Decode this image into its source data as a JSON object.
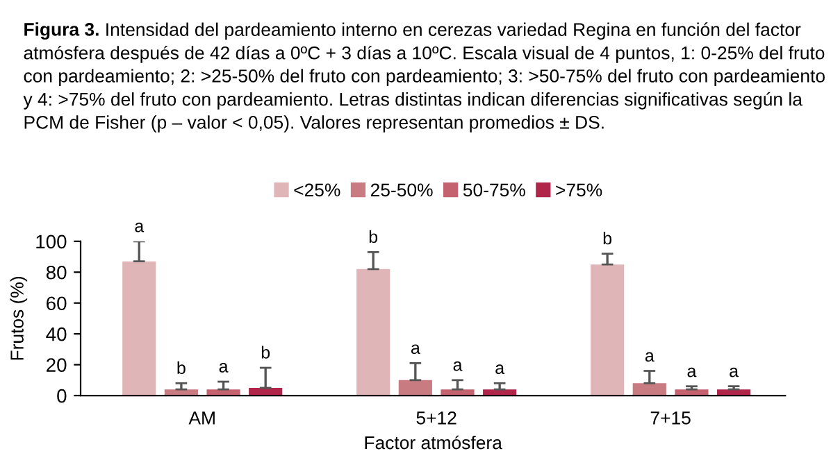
{
  "chart_data": {
    "type": "bar",
    "title": "Figura 3.",
    "subtitle": "Intensidad del pardeamiento interno en cerezas variedad Regina en función del factor atmósfera después de 42 días a 0ºC + 3 días a 10ºC. Escala visual de 4 puntos, 1: 0-25% del fruto con pardeamiento; 2: >25-50% del fruto con pardeamiento; 3: >50-75% del fruto con pardeamiento y 4: >75% del fruto con pardeamiento. Letras distintas indican diferencias significativas según la PCM de Fisher (p – valor < 0,05). Valores representan promedios ± DS.",
    "xlabel": "Factor atmósfera",
    "ylabel": "Frutos (%)",
    "categories": [
      "AM",
      "5+12",
      "7+15"
    ],
    "series": [
      {
        "name": "<25%",
        "color": "#e0b5b7",
        "values": [
          87,
          82,
          85
        ],
        "errors": [
          13,
          11,
          7
        ],
        "value_labels": [
          "a",
          "b",
          "b"
        ]
      },
      {
        "name": "25-50%",
        "color": "#c97b82",
        "values": [
          4,
          10,
          8
        ],
        "errors": [
          4,
          11,
          8
        ],
        "value_labels": [
          "b",
          "a",
          "a"
        ]
      },
      {
        "name": "50-75%",
        "color": "#c4626f",
        "values": [
          4,
          4,
          4
        ],
        "errors": [
          5,
          6,
          2
        ],
        "value_labels": [
          "a",
          "a",
          "a"
        ]
      },
      {
        "name": ">75%",
        "color": "#b0264b",
        "values": [
          5,
          4,
          4
        ],
        "errors": [
          13,
          4,
          2
        ],
        "value_labels": [
          "b",
          "a",
          "a"
        ]
      }
    ],
    "ylim": [
      0,
      100
    ],
    "yticks": [
      0,
      20,
      40,
      60,
      80,
      100
    ],
    "grid": false,
    "legend": "top"
  }
}
